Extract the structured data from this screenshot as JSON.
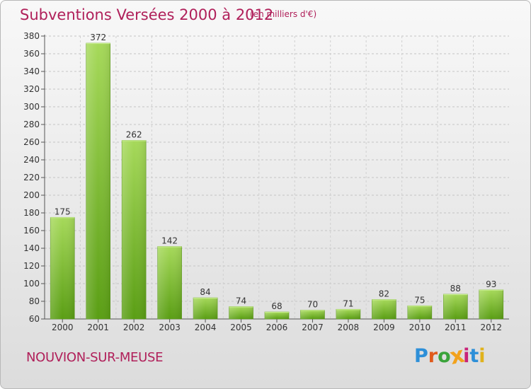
{
  "header": {
    "title": "Subventions Versées 2000 à 2012",
    "subtitle": "(en milliers d'€)"
  },
  "footer": {
    "commune": "NOUVION-SUR-MEUSE",
    "logo_text": "Proxiti",
    "logo_colors": [
      "#2d8fd8",
      "#e05a1c",
      "#3aa33a",
      "#f2a21c",
      "#c8237a",
      "#2d8fd8",
      "#e0b21c"
    ]
  },
  "chart_data": {
    "type": "bar",
    "title": "Subventions Versées 2000 à 2012",
    "subtitle": "(en milliers d'€)",
    "categories": [
      "2000",
      "2001",
      "2002",
      "2003",
      "2004",
      "2005",
      "2006",
      "2007",
      "2008",
      "2009",
      "2010",
      "2011",
      "2012"
    ],
    "values": [
      175,
      372,
      262,
      142,
      84,
      74,
      68,
      70,
      71,
      82,
      75,
      88,
      93
    ],
    "ylim": [
      60,
      380
    ],
    "yticks": [
      60,
      80,
      100,
      120,
      140,
      160,
      180,
      200,
      220,
      240,
      260,
      280,
      300,
      320,
      340,
      360,
      380
    ],
    "grid": "horizontal dashed",
    "bar_color": "#7dbf2e",
    "value_labels": true
  }
}
